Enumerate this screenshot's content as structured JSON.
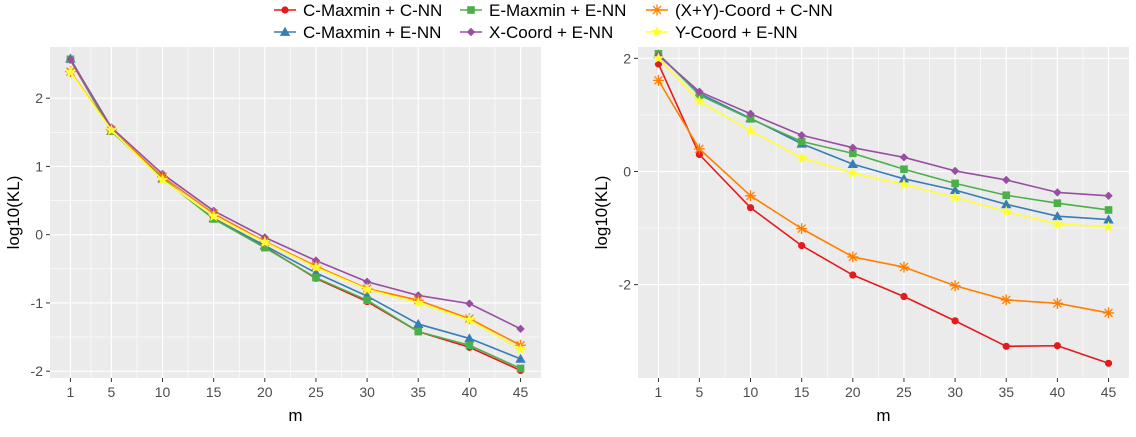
{
  "legend": [
    {
      "label": "C-Maxmin + C-NN",
      "color": "#E41A1C",
      "shape": "circle"
    },
    {
      "label": "C-Maxmin + E-NN",
      "color": "#377EB8",
      "shape": "triangle"
    },
    {
      "label": "E-Maxmin + E-NN",
      "color": "#4DAF4A",
      "shape": "square"
    },
    {
      "label": "X-Coord + E-NN",
      "color": "#984EA3",
      "shape": "diamond"
    },
    {
      "label": "(X+Y)-Coord + C-NN",
      "color": "#FF7F00",
      "shape": "asterisk"
    },
    {
      "label": "Y-Coord + E-NN",
      "color": "#FFFF33",
      "shape": "star"
    }
  ],
  "chart_data": [
    {
      "type": "line",
      "xlabel": "m",
      "ylabel": "log10(KL)",
      "x": [
        1,
        5,
        10,
        15,
        20,
        25,
        30,
        35,
        40,
        45
      ],
      "x_ticks": [
        "1",
        "5",
        "10",
        "15",
        "20",
        "25",
        "30",
        "35",
        "40",
        "45"
      ],
      "xlim": [
        -1,
        47
      ],
      "ylim": [
        -2.1,
        2.75
      ],
      "y_ticks": [
        -2,
        -1,
        0,
        1,
        2
      ],
      "y_tick_labels": [
        "-2",
        "-1",
        "0",
        "1",
        "2"
      ],
      "series": [
        {
          "name": "C-Maxmin + C-NN",
          "values": [
            2.56,
            1.52,
            0.82,
            0.24,
            -0.18,
            -0.64,
            -0.98,
            -1.42,
            -1.65,
            -1.99
          ]
        },
        {
          "name": "C-Maxmin + E-NN",
          "values": [
            2.58,
            1.52,
            0.82,
            0.24,
            -0.16,
            -0.56,
            -0.9,
            -1.31,
            -1.52,
            -1.82
          ]
        },
        {
          "name": "E-Maxmin + E-NN",
          "values": [
            2.57,
            1.52,
            0.82,
            0.23,
            -0.19,
            -0.63,
            -0.96,
            -1.42,
            -1.62,
            -1.96
          ]
        },
        {
          "name": "X-Coord + E-NN",
          "values": [
            2.57,
            1.57,
            0.89,
            0.35,
            -0.04,
            -0.38,
            -0.69,
            -0.89,
            -1.01,
            -1.38
          ]
        },
        {
          "name": "(X+Y)-Coord + C-NN",
          "values": [
            2.39,
            1.54,
            0.85,
            0.31,
            -0.1,
            -0.46,
            -0.79,
            -0.96,
            -1.23,
            -1.62
          ]
        },
        {
          "name": "Y-Coord + E-NN",
          "values": [
            2.38,
            1.53,
            0.8,
            0.27,
            -0.11,
            -0.48,
            -0.8,
            -1.0,
            -1.25,
            -1.68
          ]
        }
      ]
    },
    {
      "type": "line",
      "xlabel": "m",
      "ylabel": "log10(KL)",
      "x": [
        1,
        5,
        10,
        15,
        20,
        25,
        30,
        35,
        40,
        45
      ],
      "x_ticks": [
        "1",
        "5",
        "10",
        "15",
        "20",
        "25",
        "30",
        "35",
        "40",
        "45"
      ],
      "xlim": [
        -1,
        47
      ],
      "ylim": [
        -3.65,
        2.2
      ],
      "y_ticks": [
        -2,
        0,
        2
      ],
      "y_tick_labels": [
        "-2",
        "0",
        "2"
      ],
      "series": [
        {
          "name": "C-Maxmin + C-NN",
          "values": [
            1.9,
            0.3,
            -0.64,
            -1.31,
            -1.83,
            -2.21,
            -2.64,
            -3.09,
            -3.08,
            -3.39
          ]
        },
        {
          "name": "C-Maxmin + E-NN",
          "values": [
            2.07,
            1.38,
            0.94,
            0.49,
            0.13,
            -0.13,
            -0.33,
            -0.58,
            -0.79,
            -0.85
          ]
        },
        {
          "name": "E-Maxmin + E-NN",
          "values": [
            2.08,
            1.35,
            0.93,
            0.53,
            0.32,
            0.04,
            -0.21,
            -0.42,
            -0.56,
            -0.68
          ]
        },
        {
          "name": "X-Coord + E-NN",
          "values": [
            2.05,
            1.41,
            1.02,
            0.64,
            0.42,
            0.25,
            0.01,
            -0.15,
            -0.37,
            -0.43
          ]
        },
        {
          "name": "(X+Y)-Coord + C-NN",
          "values": [
            1.61,
            0.4,
            -0.43,
            -1.01,
            -1.51,
            -1.69,
            -2.02,
            -2.27,
            -2.33,
            -2.5
          ]
        },
        {
          "name": "Y-Coord + E-NN",
          "values": [
            2.0,
            1.24,
            0.72,
            0.24,
            -0.03,
            -0.23,
            -0.46,
            -0.71,
            -0.93,
            -0.98
          ]
        }
      ]
    }
  ]
}
